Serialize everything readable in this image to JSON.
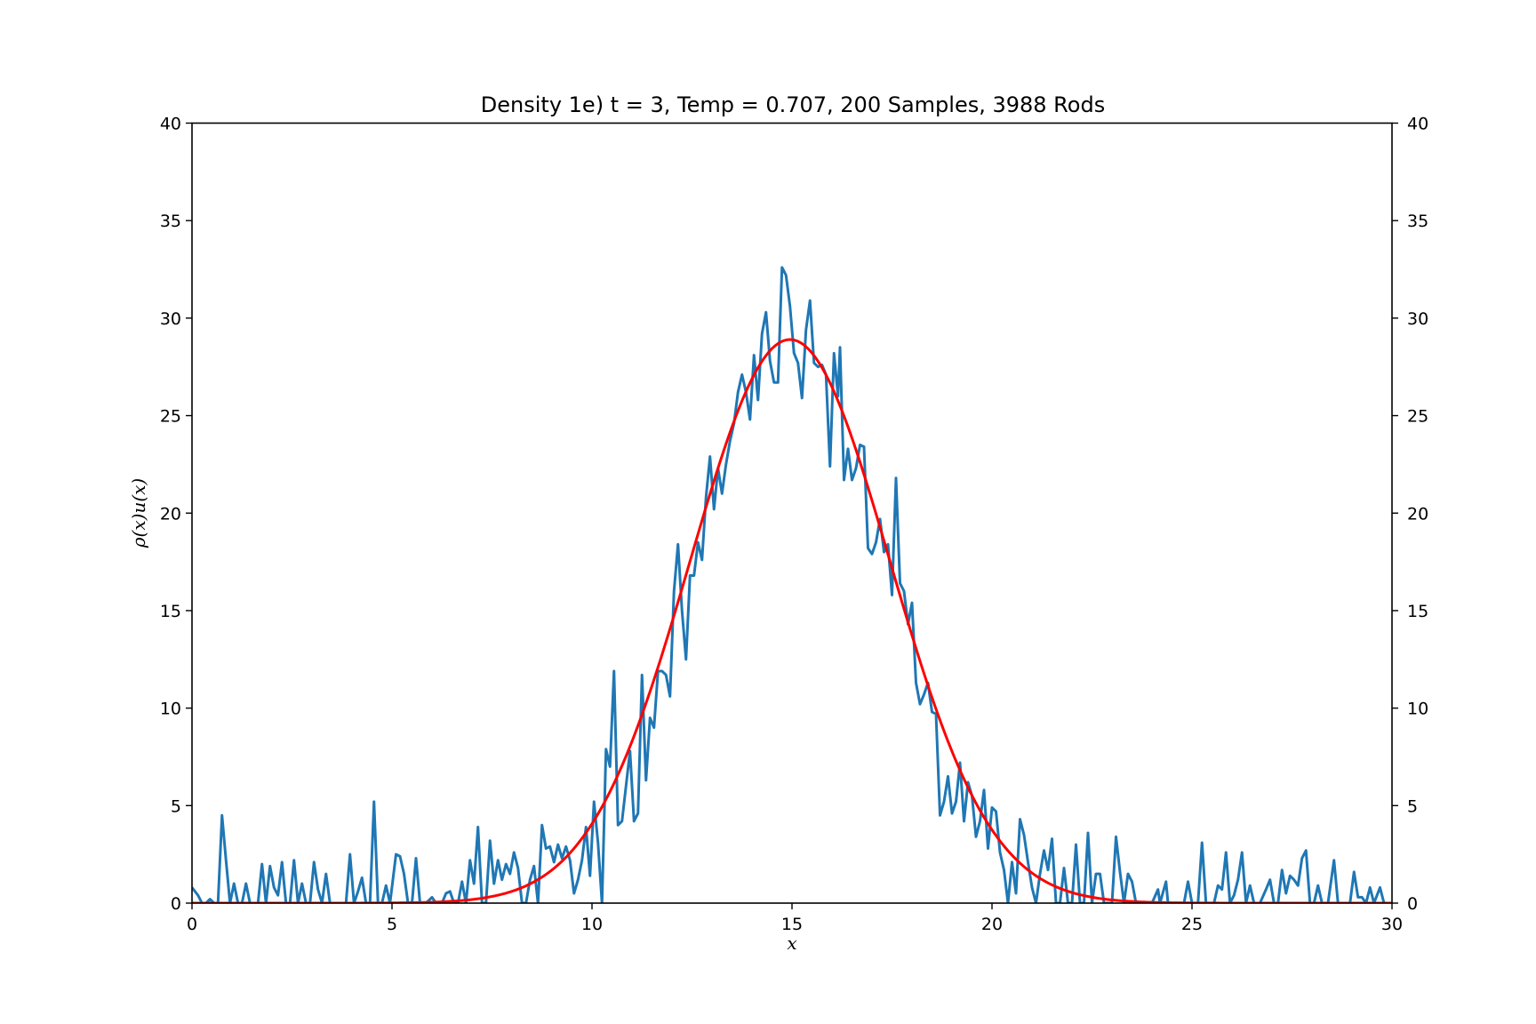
{
  "chart_data": {
    "type": "line",
    "title": "Density 1e) t = 3, Temp = 0.707, 200 Samples, 3988 Rods",
    "xlabel": "x",
    "ylabel": "ρ(x)u(x)",
    "xlim": [
      0,
      30
    ],
    "ylim": [
      0,
      40
    ],
    "xticks": [
      0,
      5,
      10,
      15,
      20,
      25,
      30
    ],
    "yticks": [
      0,
      5,
      10,
      15,
      20,
      25,
      30,
      35,
      40
    ],
    "xtick_labels": [
      "0",
      "5",
      "10",
      "15",
      "20",
      "25",
      "30"
    ],
    "ytick_labels": [
      "0",
      "5",
      "10",
      "15",
      "20",
      "25",
      "30",
      "35",
      "40"
    ],
    "right_axis_ticks": true,
    "grid": false,
    "series": [
      {
        "color": "#1f77b4",
        "points": [
          [
            0.0,
            0.8
          ],
          [
            0.15,
            0.4
          ],
          [
            0.25,
            0.0
          ],
          [
            0.35,
            0.0
          ],
          [
            0.45,
            0.2
          ],
          [
            0.55,
            0.0
          ],
          [
            0.65,
            0.0
          ],
          [
            0.75,
            4.5
          ],
          [
            0.85,
            2.2
          ],
          [
            0.95,
            0.0
          ],
          [
            1.05,
            1.0
          ],
          [
            1.15,
            0.0
          ],
          [
            1.25,
            0.0
          ],
          [
            1.35,
            1.0
          ],
          [
            1.45,
            0.0
          ],
          [
            1.55,
            0.0
          ],
          [
            1.65,
            0.0
          ],
          [
            1.75,
            2.0
          ],
          [
            1.85,
            0.0
          ],
          [
            1.95,
            1.9
          ],
          [
            2.05,
            0.8
          ],
          [
            2.15,
            0.4
          ],
          [
            2.25,
            2.1
          ],
          [
            2.35,
            0.0
          ],
          [
            2.45,
            0.0
          ],
          [
            2.55,
            2.2
          ],
          [
            2.65,
            0.0
          ],
          [
            2.75,
            1.0
          ],
          [
            2.85,
            0.0
          ],
          [
            2.95,
            0.0
          ],
          [
            3.05,
            2.1
          ],
          [
            3.15,
            0.7
          ],
          [
            3.25,
            0.0
          ],
          [
            3.35,
            1.5
          ],
          [
            3.45,
            0.0
          ],
          [
            3.55,
            0.0
          ],
          [
            3.7,
            0.0
          ],
          [
            3.85,
            0.0
          ],
          [
            3.95,
            2.5
          ],
          [
            4.05,
            0.0
          ],
          [
            4.15,
            0.6
          ],
          [
            4.25,
            1.3
          ],
          [
            4.35,
            0.0
          ],
          [
            4.45,
            0.0
          ],
          [
            4.55,
            5.2
          ],
          [
            4.65,
            0.0
          ],
          [
            4.75,
            0.0
          ],
          [
            4.85,
            0.9
          ],
          [
            4.95,
            0.0
          ],
          [
            5.1,
            2.5
          ],
          [
            5.2,
            2.4
          ],
          [
            5.3,
            1.5
          ],
          [
            5.4,
            0.0
          ],
          [
            5.5,
            0.0
          ],
          [
            5.6,
            2.3
          ],
          [
            5.7,
            0.0
          ],
          [
            5.85,
            0.0
          ],
          [
            6.0,
            0.3
          ],
          [
            6.1,
            0.0
          ],
          [
            6.25,
            0.0
          ],
          [
            6.35,
            0.5
          ],
          [
            6.45,
            0.6
          ],
          [
            6.55,
            0.0
          ],
          [
            6.65,
            0.0
          ],
          [
            6.75,
            1.1
          ],
          [
            6.85,
            0.0
          ],
          [
            6.95,
            2.2
          ],
          [
            7.05,
            1.0
          ],
          [
            7.15,
            3.9
          ],
          [
            7.25,
            0.0
          ],
          [
            7.35,
            0.0
          ],
          [
            7.45,
            3.2
          ],
          [
            7.55,
            1.0
          ],
          [
            7.65,
            2.2
          ],
          [
            7.75,
            1.2
          ],
          [
            7.85,
            2.0
          ],
          [
            7.95,
            1.5
          ],
          [
            8.05,
            2.6
          ],
          [
            8.15,
            1.8
          ],
          [
            8.25,
            0.0
          ],
          [
            8.35,
            0.0
          ],
          [
            8.45,
            1.2
          ],
          [
            8.55,
            1.9
          ],
          [
            8.65,
            0.0
          ],
          [
            8.75,
            4.0
          ],
          [
            8.85,
            2.8
          ],
          [
            8.95,
            2.9
          ],
          [
            9.05,
            2.1
          ],
          [
            9.15,
            3.0
          ],
          [
            9.25,
            2.3
          ],
          [
            9.35,
            2.9
          ],
          [
            9.45,
            2.2
          ],
          [
            9.55,
            0.5
          ],
          [
            9.65,
            1.2
          ],
          [
            9.75,
            2.2
          ],
          [
            9.85,
            3.9
          ],
          [
            9.95,
            1.4
          ],
          [
            10.05,
            5.2
          ],
          [
            10.15,
            3.1
          ],
          [
            10.25,
            0.0
          ],
          [
            10.35,
            7.9
          ],
          [
            10.45,
            7.0
          ],
          [
            10.55,
            11.9
          ],
          [
            10.65,
            4.0
          ],
          [
            10.75,
            4.2
          ],
          [
            10.85,
            6.0
          ],
          [
            10.95,
            7.8
          ],
          [
            11.05,
            4.2
          ],
          [
            11.15,
            4.6
          ],
          [
            11.25,
            11.7
          ],
          [
            11.35,
            6.3
          ],
          [
            11.45,
            9.5
          ],
          [
            11.55,
            9.0
          ],
          [
            11.65,
            11.9
          ],
          [
            11.75,
            11.9
          ],
          [
            11.85,
            11.7
          ],
          [
            11.95,
            10.6
          ],
          [
            12.05,
            16.0
          ],
          [
            12.15,
            18.4
          ],
          [
            12.25,
            15.0
          ],
          [
            12.35,
            12.5
          ],
          [
            12.45,
            16.8
          ],
          [
            12.55,
            16.8
          ],
          [
            12.65,
            18.5
          ],
          [
            12.75,
            17.6
          ],
          [
            12.85,
            20.8
          ],
          [
            12.95,
            22.9
          ],
          [
            13.05,
            20.2
          ],
          [
            13.15,
            22.3
          ],
          [
            13.25,
            21.0
          ],
          [
            13.35,
            22.5
          ],
          [
            13.45,
            23.7
          ],
          [
            13.55,
            24.6
          ],
          [
            13.65,
            26.2
          ],
          [
            13.75,
            27.1
          ],
          [
            13.85,
            26.2
          ],
          [
            13.95,
            24.8
          ],
          [
            14.05,
            28.1
          ],
          [
            14.15,
            25.8
          ],
          [
            14.25,
            29.2
          ],
          [
            14.35,
            30.3
          ],
          [
            14.45,
            27.8
          ],
          [
            14.55,
            26.7
          ],
          [
            14.65,
            26.7
          ],
          [
            14.75,
            32.6
          ],
          [
            14.85,
            32.2
          ],
          [
            14.95,
            30.6
          ],
          [
            15.05,
            28.2
          ],
          [
            15.15,
            27.7
          ],
          [
            15.25,
            25.9
          ],
          [
            15.35,
            29.4
          ],
          [
            15.45,
            30.9
          ],
          [
            15.55,
            27.7
          ],
          [
            15.65,
            27.5
          ],
          [
            15.75,
            27.6
          ],
          [
            15.85,
            27.1
          ],
          [
            15.95,
            22.4
          ],
          [
            16.05,
            28.2
          ],
          [
            16.15,
            26.0
          ],
          [
            16.2,
            28.5
          ],
          [
            16.3,
            21.7
          ],
          [
            16.4,
            23.3
          ],
          [
            16.5,
            21.7
          ],
          [
            16.6,
            22.3
          ],
          [
            16.7,
            23.5
          ],
          [
            16.8,
            23.4
          ],
          [
            16.9,
            18.2
          ],
          [
            17.0,
            17.9
          ],
          [
            17.1,
            18.5
          ],
          [
            17.2,
            19.7
          ],
          [
            17.3,
            18.0
          ],
          [
            17.4,
            18.4
          ],
          [
            17.5,
            15.8
          ],
          [
            17.6,
            21.8
          ],
          [
            17.7,
            16.4
          ],
          [
            17.8,
            16.0
          ],
          [
            17.9,
            14.3
          ],
          [
            18.0,
            15.4
          ],
          [
            18.1,
            11.3
          ],
          [
            18.2,
            10.2
          ],
          [
            18.3,
            10.7
          ],
          [
            18.4,
            11.3
          ],
          [
            18.5,
            9.8
          ],
          [
            18.6,
            9.7
          ],
          [
            18.7,
            4.5
          ],
          [
            18.8,
            5.2
          ],
          [
            18.9,
            6.5
          ],
          [
            19.0,
            4.6
          ],
          [
            19.1,
            5.2
          ],
          [
            19.2,
            7.2
          ],
          [
            19.3,
            4.2
          ],
          [
            19.4,
            6.2
          ],
          [
            19.5,
            5.5
          ],
          [
            19.6,
            3.4
          ],
          [
            19.7,
            4.2
          ],
          [
            19.8,
            5.8
          ],
          [
            19.9,
            2.8
          ],
          [
            20.0,
            4.9
          ],
          [
            20.1,
            4.7
          ],
          [
            20.2,
            2.6
          ],
          [
            20.3,
            1.7
          ],
          [
            20.4,
            0.0
          ],
          [
            20.5,
            2.1
          ],
          [
            20.6,
            0.5
          ],
          [
            20.7,
            4.3
          ],
          [
            20.8,
            3.5
          ],
          [
            20.9,
            2.1
          ],
          [
            21.0,
            0.8
          ],
          [
            21.1,
            0.0
          ],
          [
            21.2,
            1.5
          ],
          [
            21.3,
            2.7
          ],
          [
            21.4,
            1.7
          ],
          [
            21.5,
            3.3
          ],
          [
            21.6,
            0.0
          ],
          [
            21.7,
            0.0
          ],
          [
            21.8,
            1.8
          ],
          [
            21.9,
            0.0
          ],
          [
            22.0,
            0.0
          ],
          [
            22.1,
            3.0
          ],
          [
            22.2,
            0.0
          ],
          [
            22.3,
            0.0
          ],
          [
            22.4,
            3.6
          ],
          [
            22.5,
            0.0
          ],
          [
            22.6,
            1.5
          ],
          [
            22.7,
            1.5
          ],
          [
            22.8,
            0.0
          ],
          [
            22.9,
            0.0
          ],
          [
            23.0,
            0.0
          ],
          [
            23.1,
            3.4
          ],
          [
            23.2,
            1.6
          ],
          [
            23.3,
            0.0
          ],
          [
            23.4,
            1.5
          ],
          [
            23.5,
            1.1
          ],
          [
            23.6,
            0.0
          ],
          [
            23.8,
            0.0
          ],
          [
            24.0,
            0.0
          ],
          [
            24.15,
            0.7
          ],
          [
            24.2,
            0.0
          ],
          [
            24.35,
            1.1
          ],
          [
            24.4,
            0.0
          ],
          [
            24.8,
            0.0
          ],
          [
            24.9,
            1.1
          ],
          [
            25.0,
            0.0
          ],
          [
            25.15,
            0.0
          ],
          [
            25.25,
            3.1
          ],
          [
            25.35,
            0.0
          ],
          [
            25.55,
            0.0
          ],
          [
            25.65,
            0.9
          ],
          [
            25.75,
            0.7
          ],
          [
            25.85,
            2.6
          ],
          [
            25.95,
            0.0
          ],
          [
            26.05,
            0.4
          ],
          [
            26.15,
            1.2
          ],
          [
            26.25,
            2.6
          ],
          [
            26.35,
            0.0
          ],
          [
            26.45,
            0.9
          ],
          [
            26.55,
            0.0
          ],
          [
            26.7,
            0.0
          ],
          [
            26.85,
            0.7
          ],
          [
            26.95,
            1.2
          ],
          [
            27.05,
            0.0
          ],
          [
            27.15,
            0.0
          ],
          [
            27.25,
            1.7
          ],
          [
            27.35,
            0.5
          ],
          [
            27.45,
            1.4
          ],
          [
            27.55,
            1.2
          ],
          [
            27.65,
            0.9
          ],
          [
            27.75,
            2.3
          ],
          [
            27.85,
            2.7
          ],
          [
            27.95,
            0.0
          ],
          [
            28.05,
            0.0
          ],
          [
            28.15,
            0.9
          ],
          [
            28.25,
            0.0
          ],
          [
            28.4,
            0.0
          ],
          [
            28.55,
            2.2
          ],
          [
            28.65,
            0.0
          ],
          [
            28.85,
            0.0
          ],
          [
            28.95,
            0.0
          ],
          [
            29.05,
            1.6
          ],
          [
            29.15,
            0.3
          ],
          [
            29.25,
            0.3
          ],
          [
            29.35,
            0.0
          ],
          [
            29.45,
            0.8
          ],
          [
            29.55,
            0.0
          ],
          [
            29.7,
            0.8
          ],
          [
            29.8,
            0.0
          ],
          [
            30.0,
            0.0
          ]
        ]
      },
      {
        "color": "#ff0000",
        "type": "gaussian",
        "amplitude": 28.9,
        "center": 14.95,
        "sigma": 2.5,
        "x_range": [
          0,
          30
        ]
      }
    ]
  }
}
